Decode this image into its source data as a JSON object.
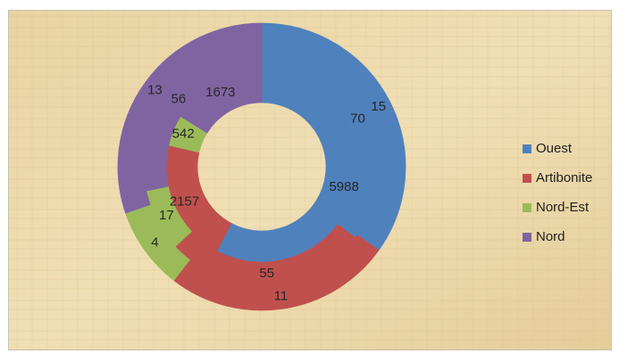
{
  "chart_data": {
    "type": "doughnut",
    "title": "",
    "legend_position": "right",
    "series": [
      {
        "name": "",
        "ring": "inner",
        "values": [
          5988,
          2157,
          542,
          1673
        ]
      },
      {
        "name": "",
        "ring": "middle",
        "values": [
          70,
          55,
          17,
          56
        ]
      },
      {
        "name": "",
        "ring": "outer",
        "values": [
          15,
          11,
          4,
          13
        ]
      }
    ],
    "categories": [
      "Ouest",
      "Artibonite",
      "Nord-Est",
      "Nord"
    ],
    "colors": [
      "#4f81bd",
      "#c0504d",
      "#9bbb59",
      "#8064a2"
    ]
  }
}
